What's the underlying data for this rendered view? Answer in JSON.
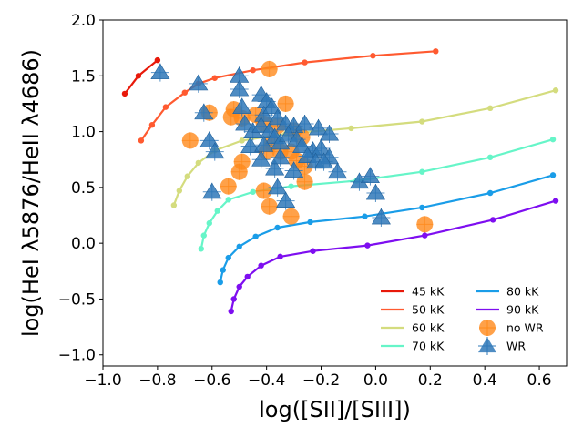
{
  "chart_data": {
    "type": "scatter",
    "xlabel": "log([SII]/[SIII])",
    "ylabel": "log(HeI λ5876/HeII λ4686)",
    "xlim": [
      -1.0,
      0.7
    ],
    "ylim": [
      -1.1,
      2.0
    ],
    "xticks": [
      "−1.0",
      "−0.8",
      "−0.6",
      "−0.4",
      "−0.2",
      "0.0",
      "0.2",
      "0.4",
      "0.6"
    ],
    "xtick_values": [
      -1.0,
      -0.8,
      -0.6,
      -0.4,
      -0.2,
      0.0,
      0.2,
      0.4,
      0.6
    ],
    "yticks": [
      "−1.0",
      "−0.5",
      "0.0",
      "0.5",
      "1.0",
      "1.5",
      "2.0"
    ],
    "ytick_values": [
      -1.0,
      -0.5,
      0.0,
      0.5,
      1.0,
      1.5,
      2.0
    ],
    "grid": false,
    "legend_placement": "lower-right",
    "series": [
      {
        "name": "45 kK",
        "kind": "line",
        "color": "#e8190a",
        "x": [
          -0.92,
          -0.87,
          -0.8
        ],
        "y": [
          1.34,
          1.5,
          1.64
        ]
      },
      {
        "name": "50 kK",
        "kind": "line",
        "color": "#ff5a30",
        "x": [
          -0.86,
          -0.82,
          -0.77,
          -0.7,
          -0.65,
          -0.59,
          -0.45,
          -0.26,
          -0.01,
          0.22
        ],
        "y": [
          0.92,
          1.06,
          1.22,
          1.35,
          1.43,
          1.48,
          1.55,
          1.62,
          1.68,
          1.72
        ]
      },
      {
        "name": "60 kK",
        "kind": "line",
        "color": "#d4dc7e",
        "x": [
          -0.74,
          -0.72,
          -0.69,
          -0.65,
          -0.59,
          -0.49,
          -0.33,
          -0.09,
          0.17,
          0.42,
          0.66
        ],
        "y": [
          0.34,
          0.47,
          0.6,
          0.72,
          0.83,
          0.92,
          0.98,
          1.03,
          1.09,
          1.21,
          1.37
        ]
      },
      {
        "name": "70 kK",
        "kind": "line",
        "color": "#66f5c8",
        "x": [
          -0.64,
          -0.63,
          -0.61,
          -0.58,
          -0.54,
          -0.45,
          -0.31,
          -0.07,
          0.17,
          0.42,
          0.65
        ],
        "y": [
          -0.05,
          0.07,
          0.18,
          0.29,
          0.39,
          0.46,
          0.51,
          0.56,
          0.64,
          0.77,
          0.93
        ]
      },
      {
        "name": "80 kK",
        "kind": "line",
        "color": "#1a9de8",
        "x": [
          -0.57,
          -0.56,
          -0.54,
          -0.5,
          -0.44,
          -0.36,
          -0.24,
          -0.04,
          0.17,
          0.42,
          0.65
        ],
        "y": [
          -0.35,
          -0.24,
          -0.13,
          -0.03,
          0.06,
          0.14,
          0.19,
          0.24,
          0.32,
          0.45,
          0.61
        ]
      },
      {
        "name": "90 kK",
        "kind": "line",
        "color": "#7e0ef0",
        "x": [
          -0.53,
          -0.52,
          -0.5,
          -0.47,
          -0.42,
          -0.35,
          -0.23,
          -0.03,
          0.18,
          0.43,
          0.66
        ],
        "y": [
          -0.61,
          -0.5,
          -0.39,
          -0.3,
          -0.2,
          -0.12,
          -0.07,
          -0.02,
          0.07,
          0.21,
          0.38
        ]
      },
      {
        "name": "no WR",
        "kind": "marker",
        "marker": "circle",
        "color": "#ff8a1c",
        "x": [
          -0.39,
          -0.61,
          -0.53,
          -0.52,
          -0.49,
          -0.44,
          -0.41,
          -0.36,
          -0.33,
          -0.3,
          -0.27,
          -0.35,
          -0.31,
          -0.29,
          -0.26,
          -0.38,
          -0.4,
          -0.68,
          -0.54,
          -0.49,
          -0.5,
          -0.41,
          -0.39,
          -0.31,
          -0.26,
          0.18
        ],
        "y": [
          1.56,
          1.17,
          1.13,
          1.2,
          1.12,
          1.15,
          1.07,
          1.05,
          1.25,
          1.01,
          0.95,
          0.82,
          0.82,
          0.74,
          0.69,
          0.9,
          0.82,
          0.92,
          0.51,
          0.73,
          0.64,
          0.47,
          0.33,
          0.24,
          0.55,
          0.17
        ]
      },
      {
        "name": "WR",
        "kind": "marker",
        "marker": "triangle",
        "color": "#2f78b8",
        "x": [
          -0.79,
          -0.65,
          -0.63,
          -0.5,
          -0.5,
          -0.49,
          -0.42,
          -0.4,
          -0.41,
          -0.38,
          -0.36,
          -0.33,
          -0.3,
          -0.26,
          -0.21,
          -0.17,
          -0.61,
          -0.59,
          -0.48,
          -0.45,
          -0.42,
          -0.39,
          -0.37,
          -0.35,
          -0.32,
          -0.29,
          -0.27,
          -0.23,
          -0.2,
          -0.17,
          -0.46,
          -0.42,
          -0.41,
          -0.37,
          -0.35,
          -0.3,
          -0.25,
          -0.22,
          -0.19,
          -0.14,
          -0.06,
          -0.02,
          0.0,
          0.02,
          -0.6,
          -0.36,
          -0.33
        ],
        "y": [
          1.53,
          1.43,
          1.17,
          1.5,
          1.38,
          1.22,
          1.33,
          1.27,
          1.15,
          1.22,
          1.12,
          1.07,
          1.05,
          1.07,
          1.03,
          0.98,
          0.92,
          0.82,
          1.07,
          1.0,
          1.05,
          1.0,
          0.95,
          0.9,
          0.97,
          0.93,
          0.87,
          0.83,
          0.85,
          0.77,
          0.87,
          0.75,
          0.88,
          0.67,
          0.77,
          0.65,
          0.78,
          0.73,
          0.73,
          0.64,
          0.55,
          0.6,
          0.45,
          0.23,
          0.46,
          0.5,
          0.38
        ]
      }
    ]
  }
}
